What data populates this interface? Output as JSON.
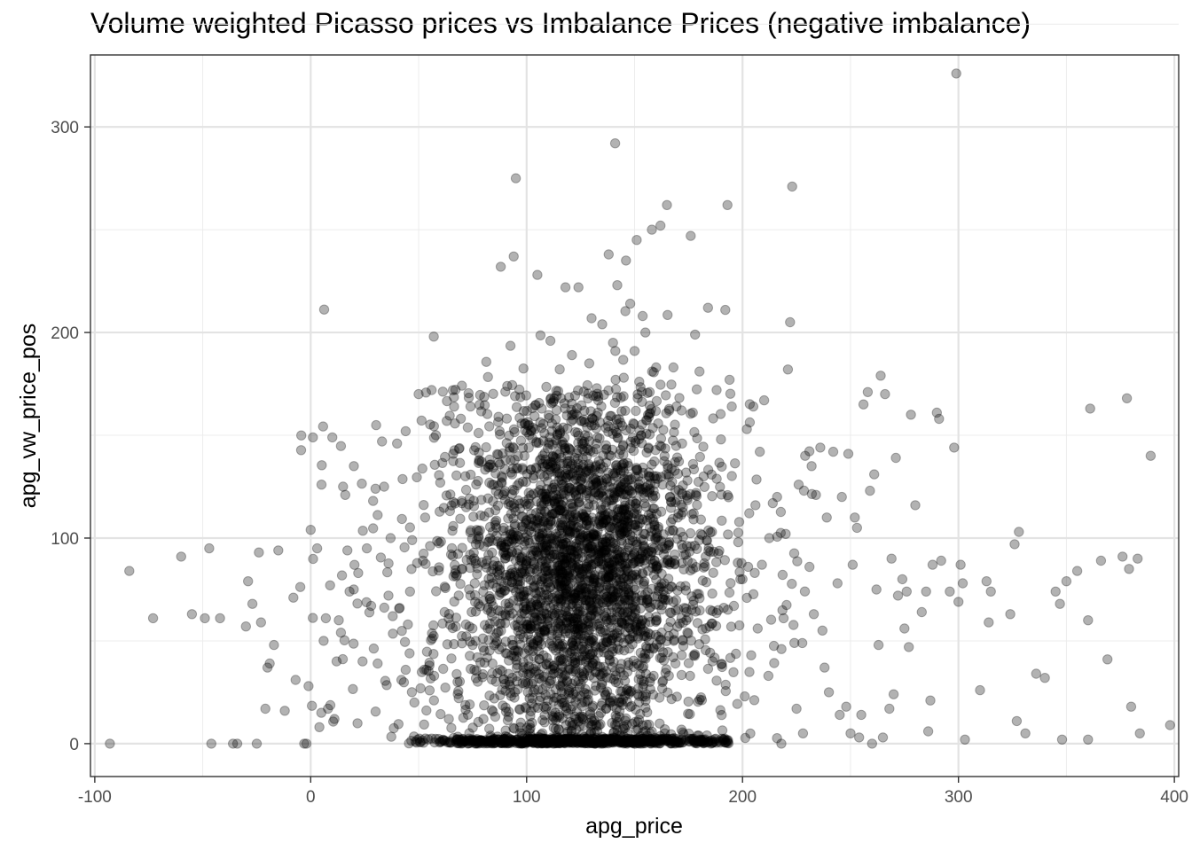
{
  "chart_data": {
    "type": "scatter",
    "title": "Volume weighted Picasso prices vs Imbalance Prices (negative imbalance)",
    "xlabel": "apg_price",
    "ylabel": "apg_vw_price_pos",
    "xlim": [
      -102,
      402
    ],
    "ylim": [
      -16,
      335
    ],
    "x_ticks": [
      -100,
      0,
      100,
      200,
      300,
      400
    ],
    "x_tick_labels": [
      "-100",
      "0",
      "100",
      "200",
      "300",
      "400"
    ],
    "y_ticks": [
      0,
      100,
      200,
      300
    ],
    "y_tick_labels": [
      "0",
      "100",
      "200",
      "300"
    ],
    "grid": true,
    "legend": "none",
    "point_color": "#000000",
    "point_opacity": 0.3,
    "dense_region_note_values": {
      "core_center": [
        125,
        85
      ],
      "core_spread": [
        28,
        45
      ]
    },
    "points": [
      [
        -93,
        0
      ],
      [
        -84,
        84
      ],
      [
        -73,
        61
      ],
      [
        -60,
        91
      ],
      [
        -55,
        63
      ],
      [
        -49,
        61
      ],
      [
        -47,
        95
      ],
      [
        -46,
        0
      ],
      [
        -42,
        61
      ],
      [
        -36,
        0
      ],
      [
        -34,
        0
      ],
      [
        -30,
        57
      ],
      [
        -29,
        79
      ],
      [
        -27,
        68
      ],
      [
        -25,
        0
      ],
      [
        -24,
        93
      ],
      [
        -23,
        59
      ],
      [
        -21,
        17
      ],
      [
        -20,
        37
      ],
      [
        -19,
        39
      ],
      [
        -17,
        48
      ],
      [
        -15,
        94
      ],
      [
        -12,
        16
      ],
      [
        -8,
        71
      ],
      [
        -7,
        31
      ],
      [
        -3,
        0
      ],
      [
        -2,
        0
      ],
      [
        -1,
        28
      ],
      [
        0,
        104
      ],
      [
        1,
        149
      ],
      [
        3,
        95
      ],
      [
        4,
        8
      ],
      [
        5,
        126
      ],
      [
        6,
        50
      ],
      [
        7,
        61
      ],
      [
        8,
        17
      ],
      [
        9,
        77
      ],
      [
        10,
        149
      ],
      [
        11,
        12
      ],
      [
        12,
        40
      ],
      [
        13,
        60
      ],
      [
        14,
        54
      ],
      [
        15,
        125
      ],
      [
        16,
        121
      ],
      [
        17,
        94
      ],
      [
        18,
        74
      ],
      [
        20,
        135
      ],
      [
        22,
        83
      ],
      [
        24,
        40
      ],
      [
        26,
        95
      ],
      [
        28,
        67
      ],
      [
        30,
        124
      ],
      [
        31,
        39
      ],
      [
        33,
        147
      ],
      [
        34,
        125
      ],
      [
        36,
        72
      ],
      [
        37,
        100
      ],
      [
        38,
        62
      ],
      [
        40,
        146
      ],
      [
        42,
        31
      ],
      [
        44,
        152
      ],
      [
        45,
        58
      ],
      [
        46,
        74
      ],
      [
        47,
        99
      ],
      [
        48,
        20
      ],
      [
        50,
        170
      ],
      [
        52,
        89
      ],
      [
        53,
        110
      ],
      [
        55,
        38
      ],
      [
        56,
        172
      ],
      [
        57,
        198
      ],
      [
        58,
        150
      ],
      [
        60,
        127
      ],
      [
        62,
        64
      ],
      [
        63,
        157
      ],
      [
        64,
        12
      ],
      [
        65,
        92
      ],
      [
        66,
        141
      ],
      [
        68,
        30
      ],
      [
        70,
        85
      ],
      [
        72,
        115
      ],
      [
        74,
        164
      ],
      [
        75,
        48
      ],
      [
        76,
        78
      ],
      [
        78,
        138
      ],
      [
        80,
        12
      ],
      [
        82,
        98
      ],
      [
        84,
        62
      ],
      [
        85,
        22
      ],
      [
        86,
        105
      ],
      [
        87,
        159
      ],
      [
        88,
        232
      ],
      [
        89,
        121
      ],
      [
        90,
        90
      ],
      [
        91,
        174
      ],
      [
        92,
        65
      ],
      [
        93,
        43
      ],
      [
        94,
        237
      ],
      [
        95,
        275
      ],
      [
        96,
        101
      ],
      [
        97,
        8
      ],
      [
        98,
        83
      ],
      [
        99,
        140
      ],
      [
        100,
        58
      ],
      [
        101,
        122
      ],
      [
        102,
        152
      ],
      [
        103,
        30
      ],
      [
        104,
        94
      ],
      [
        105,
        228
      ],
      [
        106,
        74
      ],
      [
        107,
        163
      ],
      [
        108,
        18
      ],
      [
        109,
        110
      ],
      [
        110,
        88
      ],
      [
        111,
        196
      ],
      [
        112,
        55
      ],
      [
        113,
        134
      ],
      [
        114,
        72
      ],
      [
        115,
        3
      ],
      [
        116,
        168
      ],
      [
        117,
        97
      ],
      [
        118,
        222
      ],
      [
        119,
        40
      ],
      [
        120,
        81
      ],
      [
        121,
        189
      ],
      [
        122,
        128
      ],
      [
        123,
        61
      ],
      [
        124,
        222
      ],
      [
        125,
        100
      ],
      [
        126,
        13
      ],
      [
        127,
        150
      ],
      [
        128,
        86
      ],
      [
        129,
        185
      ],
      [
        130,
        70
      ],
      [
        131,
        119
      ],
      [
        132,
        47
      ],
      [
        133,
        161
      ],
      [
        134,
        92
      ],
      [
        135,
        204
      ],
      [
        136,
        25
      ],
      [
        137,
        77
      ],
      [
        138,
        238
      ],
      [
        139,
        140
      ],
      [
        140,
        195
      ],
      [
        141,
        292
      ],
      [
        142,
        223
      ],
      [
        143,
        106
      ],
      [
        144,
        59
      ],
      [
        145,
        178
      ],
      [
        146,
        235
      ],
      [
        147,
        130
      ],
      [
        148,
        214
      ],
      [
        149,
        82
      ],
      [
        150,
        191
      ],
      [
        151,
        245
      ],
      [
        152,
        38
      ],
      [
        153,
        150
      ],
      [
        154,
        109
      ],
      [
        155,
        200
      ],
      [
        156,
        70
      ],
      [
        157,
        171
      ],
      [
        158,
        250
      ],
      [
        159,
        95
      ],
      [
        160,
        183
      ],
      [
        161,
        52
      ],
      [
        162,
        252
      ],
      [
        163,
        126
      ],
      [
        164,
        7
      ],
      [
        165,
        262
      ],
      [
        166,
        162
      ],
      [
        167,
        88
      ],
      [
        168,
        183
      ],
      [
        170,
        110
      ],
      [
        172,
        146
      ],
      [
        174,
        60
      ],
      [
        176,
        247
      ],
      [
        177,
        161
      ],
      [
        178,
        199
      ],
      [
        180,
        99
      ],
      [
        182,
        130
      ],
      [
        184,
        212
      ],
      [
        186,
        73
      ],
      [
        188,
        172
      ],
      [
        190,
        148
      ],
      [
        192,
        211
      ],
      [
        193,
        262
      ],
      [
        194,
        177
      ],
      [
        195,
        164
      ],
      [
        196,
        67
      ],
      [
        198,
        98
      ],
      [
        199,
        80
      ],
      [
        200,
        80
      ],
      [
        201,
        23
      ],
      [
        202,
        153
      ],
      [
        204,
        43
      ],
      [
        205,
        164
      ],
      [
        206,
        116
      ],
      [
        207,
        56
      ],
      [
        208,
        142
      ],
      [
        209,
        87
      ],
      [
        210,
        167
      ],
      [
        212,
        33
      ],
      [
        214,
        117
      ],
      [
        216,
        120
      ],
      [
        218,
        0
      ],
      [
        219,
        61
      ],
      [
        220,
        102
      ],
      [
        221,
        182
      ],
      [
        222,
        205
      ],
      [
        223,
        271
      ],
      [
        224,
        49
      ],
      [
        225,
        17
      ],
      [
        226,
        126
      ],
      [
        228,
        5
      ],
      [
        229,
        140
      ],
      [
        231,
        86
      ],
      [
        232,
        135
      ],
      [
        233,
        63
      ],
      [
        234,
        121
      ],
      [
        236,
        144
      ],
      [
        237,
        55
      ],
      [
        238,
        37
      ],
      [
        239,
        110
      ],
      [
        240,
        25
      ],
      [
        242,
        142
      ],
      [
        244,
        78
      ],
      [
        245,
        14
      ],
      [
        246,
        120
      ],
      [
        248,
        18
      ],
      [
        249,
        141
      ],
      [
        250,
        5
      ],
      [
        251,
        87
      ],
      [
        252,
        110
      ],
      [
        253,
        105
      ],
      [
        254,
        3
      ],
      [
        255,
        14
      ],
      [
        256,
        165
      ],
      [
        258,
        171
      ],
      [
        259,
        123
      ],
      [
        260,
        0
      ],
      [
        261,
        131
      ],
      [
        262,
        75
      ],
      [
        263,
        48
      ],
      [
        264,
        179
      ],
      [
        265,
        3
      ],
      [
        266,
        170
      ],
      [
        268,
        17
      ],
      [
        269,
        90
      ],
      [
        270,
        24
      ],
      [
        271,
        139
      ],
      [
        272,
        72
      ],
      [
        274,
        80
      ],
      [
        275,
        56
      ],
      [
        276,
        74
      ],
      [
        277,
        47
      ],
      [
        278,
        160
      ],
      [
        280,
        116
      ],
      [
        283,
        64
      ],
      [
        285,
        74
      ],
      [
        286,
        6
      ],
      [
        287,
        21
      ],
      [
        288,
        87
      ],
      [
        290,
        161
      ],
      [
        291,
        158
      ],
      [
        292,
        89
      ],
      [
        296,
        74
      ],
      [
        298,
        144
      ],
      [
        299,
        326
      ],
      [
        300,
        69
      ],
      [
        301,
        87
      ],
      [
        302,
        78
      ],
      [
        303,
        2
      ],
      [
        310,
        26
      ],
      [
        313,
        79
      ],
      [
        314,
        59
      ],
      [
        315,
        74
      ],
      [
        324,
        63
      ],
      [
        326,
        97
      ],
      [
        327,
        11
      ],
      [
        328,
        103
      ],
      [
        331,
        5
      ],
      [
        336,
        34
      ],
      [
        340,
        32
      ],
      [
        345,
        74
      ],
      [
        347,
        68
      ],
      [
        348,
        2
      ],
      [
        350,
        79
      ],
      [
        355,
        84
      ],
      [
        360,
        2
      ],
      [
        360,
        60
      ],
      [
        361,
        163
      ],
      [
        366,
        89
      ],
      [
        369,
        41
      ],
      [
        376,
        91
      ],
      [
        378,
        168
      ],
      [
        379,
        85
      ],
      [
        380,
        18
      ],
      [
        383,
        90
      ],
      [
        384,
        5
      ],
      [
        389,
        140
      ],
      [
        398,
        9
      ]
    ]
  }
}
